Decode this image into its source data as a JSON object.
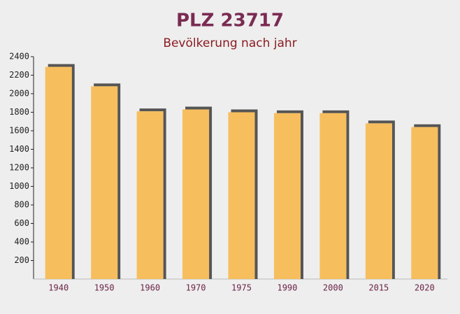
{
  "chart_data": {
    "type": "bar",
    "title": "PLZ 23717",
    "subtitle": "Bevölkerung nach jahr",
    "categories": [
      "1940",
      "1950",
      "1960",
      "1970",
      "1975",
      "1990",
      "2000",
      "2015",
      "2020"
    ],
    "values": [
      2290,
      2080,
      1810,
      1830,
      1800,
      1790,
      1790,
      1680,
      1640
    ],
    "color": "#f7b84e",
    "ylim": [
      0,
      2400
    ],
    "yticks": [
      200,
      400,
      600,
      800,
      1000,
      1200,
      1400,
      1600,
      1800,
      2000,
      2200,
      2400
    ]
  }
}
